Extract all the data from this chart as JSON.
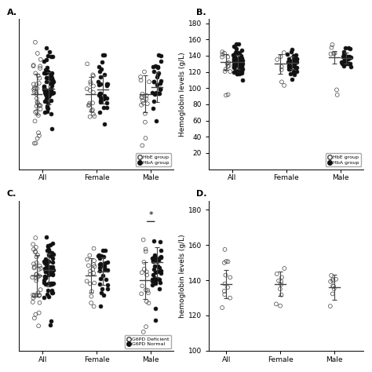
{
  "panels": {
    "A": {
      "label": "A.",
      "ylabel": "",
      "ylim": [
        55,
        185
      ],
      "yticks": [],
      "groups": [
        "All",
        "Female",
        "Male"
      ],
      "open_n": [
        35,
        18,
        15
      ],
      "open_mean": [
        120,
        120,
        120
      ],
      "open_sd": [
        18,
        15,
        16
      ],
      "open_outliers_low": [
        2,
        0,
        2
      ],
      "filled_n": [
        60,
        28,
        28
      ],
      "filled_mean": [
        125,
        124,
        126
      ],
      "filled_sd": [
        14,
        12,
        13
      ],
      "filled_outliers_low": [
        0,
        0,
        0
      ],
      "legend": [
        "HbE group",
        "HbA group"
      ],
      "sig_group": null
    },
    "B": {
      "label": "B.",
      "ylabel": "Hemoglobin levels (g/L)",
      "ylim": [
        0,
        185
      ],
      "yticks": [
        20,
        40,
        60,
        80,
        100,
        120,
        140,
        160,
        180
      ],
      "groups": [
        "All",
        "Female",
        "Male"
      ],
      "open_n": [
        12,
        7,
        5
      ],
      "open_mean": [
        132,
        130,
        138
      ],
      "open_sd": [
        10,
        12,
        8
      ],
      "open_outliers_low": [
        2,
        0,
        2
      ],
      "filled_n": [
        65,
        32,
        28
      ],
      "filled_mean": [
        132,
        131,
        137
      ],
      "filled_sd": [
        9,
        8,
        7
      ],
      "filled_outliers_low": [
        0,
        0,
        0
      ],
      "legend": [
        "HbE group",
        "HbA group"
      ],
      "sig_group": null
    },
    "C": {
      "label": "C.",
      "ylabel": "",
      "ylim": [
        55,
        185
      ],
      "yticks": [],
      "groups": [
        "All",
        "Female",
        "Male"
      ],
      "open_n": [
        35,
        18,
        15
      ],
      "open_mean": [
        120,
        120,
        116
      ],
      "open_sd": [
        18,
        15,
        16
      ],
      "open_outliers_low": [
        2,
        0,
        2
      ],
      "filled_n": [
        60,
        28,
        38
      ],
      "filled_mean": [
        125,
        124,
        132
      ],
      "filled_sd": [
        14,
        12,
        13
      ],
      "filled_outliers_low": [
        2,
        0,
        2
      ],
      "legend": [
        "G6PD Deficient",
        "G6PD Normal"
      ],
      "sig_group": "Male"
    },
    "D": {
      "label": "D.",
      "ylabel": "hemoglobin levels (g/L)",
      "ylim": [
        100,
        185
      ],
      "yticks": [
        100,
        120,
        140,
        160,
        180
      ],
      "groups": [
        "All",
        "Female",
        "Male"
      ],
      "open_n": [
        12,
        10,
        10
      ],
      "open_mean": [
        138,
        138,
        136
      ],
      "open_sd": [
        8,
        7,
        7
      ],
      "open_outliers_low": [
        0,
        0,
        0
      ],
      "filled_n": [
        0,
        0,
        0
      ],
      "filled_mean": [
        0,
        0,
        0
      ],
      "filled_sd": [
        0,
        0,
        0
      ],
      "filled_outliers_low": [
        0,
        0,
        0
      ],
      "legend": [],
      "sig_group": null
    }
  },
  "open_color": "#444444",
  "filled_color": "#111111",
  "marker_size": 3.5,
  "font_size": 6.5,
  "label_font_size": 8,
  "errorbar_color": "#444444",
  "group_sep": 0.22,
  "group_base": [
    0.62,
    1.62,
    2.62
  ]
}
